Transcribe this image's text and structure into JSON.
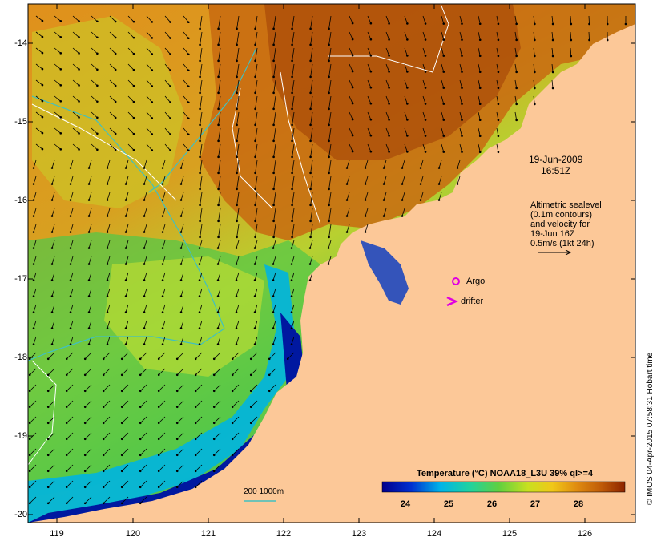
{
  "date": {
    "line1": "19-Jun-2009",
    "line2": "16:51Z"
  },
  "altimetry_legend": {
    "line1": "Altimetric sealevel",
    "line2": "(0.1m contours)",
    "line3": "and velocity for",
    "line4": "19-Jun 16Z",
    "line5": "0.5m/s (1kt 24h)"
  },
  "argo_label": "Argo",
  "drifter_label": "drifter",
  "depth_label": "200  1000m",
  "colorbar": {
    "title": "Temperature (°C) NOAA18_L3U 39% ql>=4",
    "ticks": [
      "24",
      "25",
      "26",
      "27",
      "28"
    ]
  },
  "credit": "© IMOS 04-Apr-2015 07:58:31 Hobart time",
  "axes": {
    "lon_labels": [
      "119",
      "120",
      "121",
      "122",
      "123",
      "124",
      "125",
      "126"
    ],
    "lat_labels": [
      "-14",
      "-15",
      "-16",
      "-17",
      "-18",
      "-19",
      "-20"
    ]
  },
  "colors": {
    "land": "#fcc898",
    "sst_cold": "#00008c",
    "sst_mid": "#4cd64c",
    "sst_warm": "#9a3c00",
    "argo": "#e000e0",
    "contour_200m": "#40c0c0"
  }
}
